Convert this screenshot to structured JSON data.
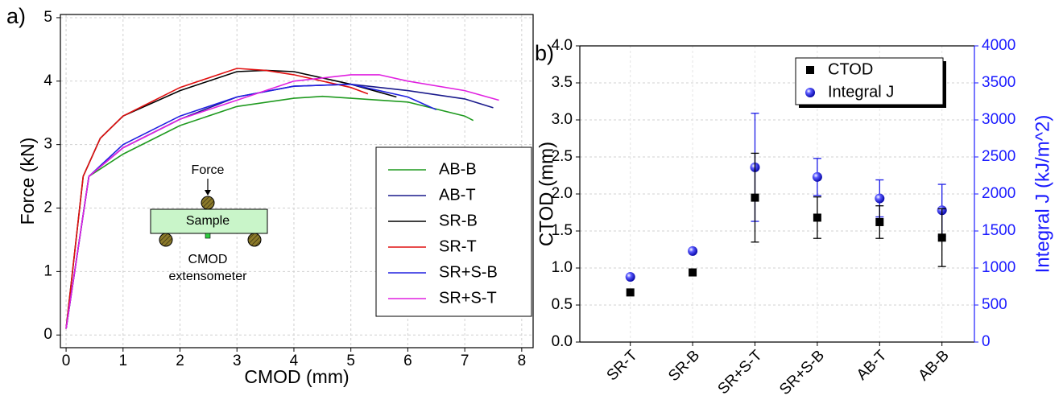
{
  "chart_data": [
    {
      "type": "line",
      "panel_label": "a)",
      "x_label": "CMOD (mm)",
      "y_label": "Force (kN)",
      "xlim": [
        -0.1,
        8.2
      ],
      "ylim": [
        -0.2,
        5.05
      ],
      "xticks": [
        0,
        1,
        2,
        3,
        4,
        5,
        6,
        7,
        8
      ],
      "yticks": [
        0,
        1,
        2,
        3,
        4,
        5
      ],
      "grid": true,
      "legend": "right",
      "annotations": [
        "Force",
        "Sample",
        "CMOD",
        "extensometer"
      ],
      "series": [
        {
          "name": "AB-B",
          "color": "#1f9a1f",
          "x": [
            0,
            0.4,
            1,
            2,
            3,
            4,
            4.5,
            5,
            6,
            7,
            7.15
          ],
          "values": [
            0.1,
            2.5,
            2.85,
            3.3,
            3.6,
            3.73,
            3.76,
            3.73,
            3.67,
            3.45,
            3.38
          ]
        },
        {
          "name": "AB-T",
          "color": "#1a1a8c",
          "x": [
            0,
            0.4,
            1,
            2,
            3,
            4,
            5,
            6,
            7,
            7.5
          ],
          "values": [
            0.1,
            2.5,
            2.95,
            3.4,
            3.75,
            3.92,
            3.95,
            3.85,
            3.72,
            3.58
          ]
        },
        {
          "name": "SR-B",
          "color": "#000000",
          "x": [
            0,
            0.3,
            0.6,
            1,
            2,
            3,
            3.5,
            4,
            5,
            5.8
          ],
          "values": [
            0.1,
            2.5,
            3.1,
            3.45,
            3.85,
            4.15,
            4.17,
            4.15,
            3.95,
            3.75
          ]
        },
        {
          "name": "SR-T",
          "color": "#e01010",
          "x": [
            0,
            0.3,
            0.6,
            1,
            2,
            3,
            3.5,
            4,
            5,
            5.3
          ],
          "values": [
            0.1,
            2.5,
            3.1,
            3.45,
            3.9,
            4.2,
            4.17,
            4.1,
            3.9,
            3.8
          ]
        },
        {
          "name": "SR+S-B",
          "color": "#2020e0",
          "x": [
            0,
            0.4,
            1,
            2,
            3,
            4,
            5,
            6,
            6.5
          ],
          "values": [
            0.1,
            2.5,
            3.0,
            3.45,
            3.75,
            3.92,
            3.95,
            3.75,
            3.55
          ]
        },
        {
          "name": "SR+S-T",
          "color": "#e020e0",
          "x": [
            0,
            0.4,
            1,
            2,
            3,
            4,
            5,
            5.5,
            6,
            7,
            7.6
          ],
          "values": [
            0.1,
            2.5,
            2.95,
            3.4,
            3.7,
            4.0,
            4.1,
            4.1,
            4.0,
            3.85,
            3.7
          ]
        }
      ]
    },
    {
      "type": "scatter",
      "panel_label": "b)",
      "y_label": "CTOD (mm)",
      "y2_label": "Integral J (kJ/m^2)",
      "y2_color": "#1a1aff",
      "categories": [
        "SR-T",
        "SR-B",
        "SR+S-T",
        "SR+S-B",
        "AB-T",
        "AB-B"
      ],
      "ylim": [
        0,
        4
      ],
      "yticks": [
        {
          "value": 0,
          "label": "0.0"
        },
        0.5,
        {
          "value": 1,
          "label": "1.0"
        },
        1.5,
        {
          "value": 2,
          "label": "2.0"
        },
        2.5,
        {
          "value": 3,
          "label": "3.0"
        },
        3.5,
        {
          "value": 4,
          "label": "4.0"
        }
      ],
      "y2lim": [
        0,
        4000
      ],
      "y2ticks": [
        0,
        500,
        1000,
        1500,
        2000,
        2500,
        3000,
        3500,
        4000
      ],
      "grid": true,
      "legend": "top right",
      "series": [
        {
          "name": "CTOD",
          "color": "#000000",
          "marker": "square",
          "values": [
            0.67,
            0.94,
            1.95,
            1.68,
            1.62,
            1.41
          ],
          "errors": [
            null,
            null,
            0.6,
            0.28,
            0.22,
            0.39
          ]
        },
        {
          "name": "Integral J",
          "color": "#1a1ae6",
          "marker": "sphere",
          "axis": "y2",
          "values": [
            880,
            1230,
            2360,
            2230,
            1940,
            1780
          ],
          "errors": [
            null,
            null,
            730,
            250,
            250,
            350
          ]
        }
      ]
    }
  ]
}
